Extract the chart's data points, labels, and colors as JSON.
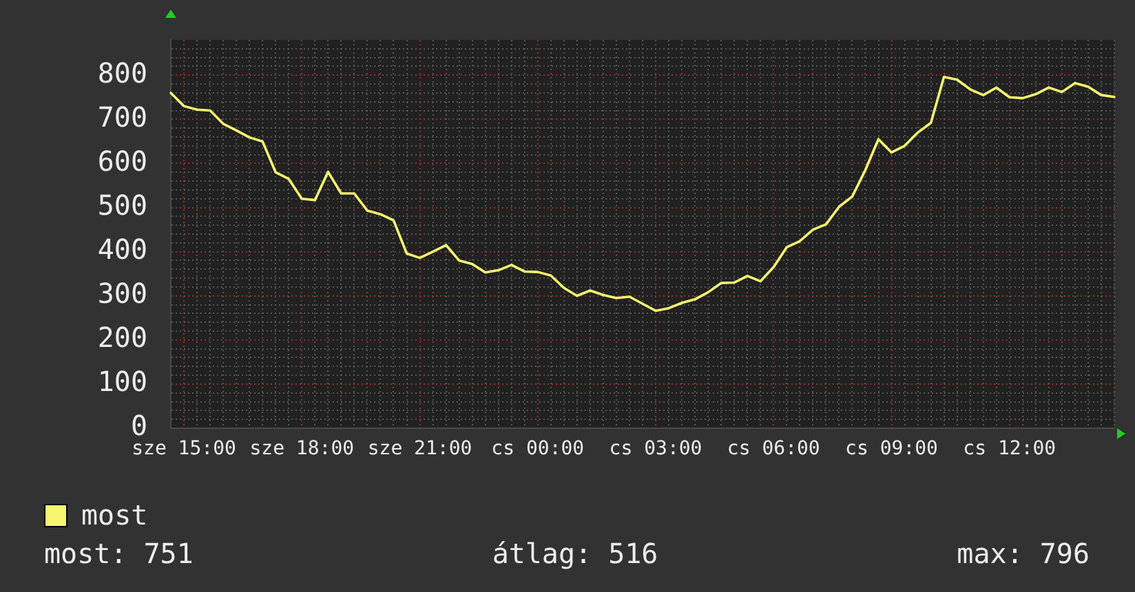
{
  "chart_data": {
    "type": "line",
    "categories": [
      null,
      "sze 15:00",
      null,
      null,
      null,
      null,
      null,
      null,
      null,
      null,
      "sze 18:00",
      null,
      null,
      null,
      null,
      null,
      null,
      null,
      null,
      "sze 21:00",
      null,
      null,
      null,
      null,
      null,
      null,
      null,
      null,
      "cs 00:00",
      null,
      null,
      null,
      null,
      null,
      null,
      null,
      null,
      "cs 03:00",
      null,
      null,
      null,
      null,
      null,
      null,
      null,
      null,
      "cs 06:00",
      null,
      null,
      null,
      null,
      null,
      null,
      null,
      null,
      "cs 09:00",
      null,
      null,
      null,
      null,
      null,
      null,
      null,
      null,
      "cs 12:00",
      null,
      null,
      null,
      null,
      null,
      null,
      null,
      null
    ],
    "series": [
      {
        "name": "most",
        "color": "#f5f56e",
        "values": [
          760,
          730,
          722,
          720,
          690,
          675,
          659,
          650,
          580,
          565,
          520,
          517,
          581,
          532,
          532,
          493,
          485,
          471,
          396,
          386,
          400,
          415,
          380,
          372,
          353,
          358,
          370,
          355,
          354,
          346,
          318,
          300,
          312,
          302,
          295,
          298,
          282,
          266,
          272,
          284,
          292,
          308,
          329,
          330,
          345,
          333,
          365,
          410,
          424,
          450,
          462,
          502,
          525,
          585,
          655,
          625,
          640,
          670,
          692,
          796,
          790,
          768,
          755,
          772,
          750,
          748,
          757,
          772,
          762,
          782,
          774,
          755,
          751
        ]
      }
    ],
    "ylim": [
      0,
      880
    ],
    "yticks": [
      0,
      {
        "value": 20,
        "label": null
      },
      {
        "value": 40,
        "label": null
      },
      {
        "value": 60,
        "label": null
      },
      {
        "value": 80,
        "label": null
      },
      100,
      {
        "value": 120,
        "label": null
      },
      {
        "value": 140,
        "label": null
      },
      {
        "value": 160,
        "label": null
      },
      {
        "value": 180,
        "label": null
      },
      200,
      {
        "value": 220,
        "label": null
      },
      {
        "value": 240,
        "label": null
      },
      {
        "value": 260,
        "label": null
      },
      {
        "value": 280,
        "label": null
      },
      300,
      {
        "value": 320,
        "label": null
      },
      {
        "value": 340,
        "label": null
      },
      {
        "value": 360,
        "label": null
      },
      {
        "value": 380,
        "label": null
      },
      400,
      {
        "value": 420,
        "label": null
      },
      {
        "value": 440,
        "label": null
      },
      {
        "value": 460,
        "label": null
      },
      {
        "value": 480,
        "label": null
      },
      500,
      {
        "value": 520,
        "label": null
      },
      {
        "value": 540,
        "label": null
      },
      {
        "value": 560,
        "label": null
      },
      {
        "value": 580,
        "label": null
      },
      600,
      {
        "value": 620,
        "label": null
      },
      {
        "value": 640,
        "label": null
      },
      {
        "value": 660,
        "label": null
      },
      {
        "value": 680,
        "label": null
      },
      700,
      {
        "value": 720,
        "label": null
      },
      {
        "value": 740,
        "label": null
      },
      {
        "value": 760,
        "label": null
      },
      {
        "value": 780,
        "label": null
      },
      800,
      {
        "value": 820,
        "label": null
      },
      {
        "value": 840,
        "label": null
      },
      {
        "value": 860,
        "label": null
      }
    ],
    "grid": true,
    "legend": "bottom left",
    "annotations": [
      "most: 751",
      "átlag: 516",
      "max: 796"
    ]
  }
}
